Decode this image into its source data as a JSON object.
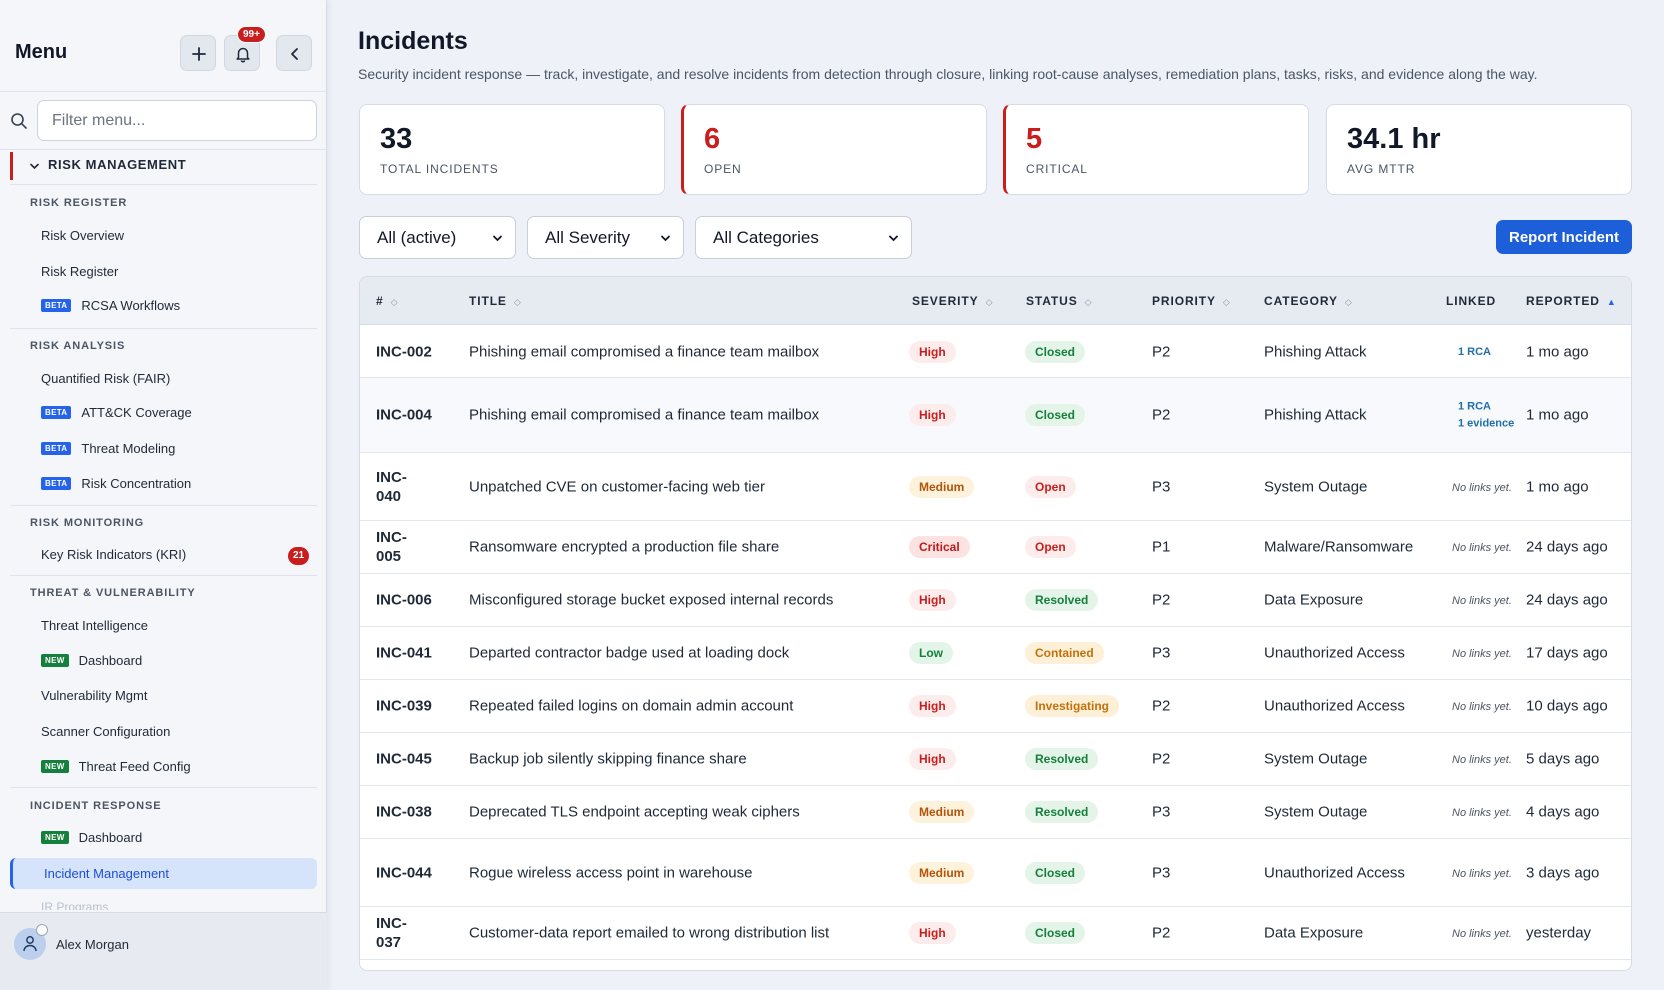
{
  "sidebar": {
    "title": "Menu",
    "notif_count": "99+",
    "search_placeholder": "Filter menu...",
    "main_section": "RISK MANAGEMENT",
    "groups": {
      "risk_register": "RISK REGISTER",
      "risk_analysis": "RISK ANALYSIS",
      "risk_monitoring": "RISK MONITORING",
      "threat_vuln": "THREAT & VULNERABILITY",
      "incident_response": "INCIDENT RESPONSE"
    },
    "items": {
      "risk_overview": "Risk Overview",
      "risk_register": "Risk Register",
      "rcsa": "RCSA Workflows",
      "fair": "Quantified Risk (FAIR)",
      "attack": "ATT&CK Coverage",
      "threat_modeling": "Threat Modeling",
      "risk_concentration": "Risk Concentration",
      "kri": "Key Risk Indicators (KRI)",
      "kri_count": "21",
      "threat_intel": "Threat Intelligence",
      "tv_dashboard": "Dashboard",
      "vuln_mgmt": "Vulnerability Mgmt",
      "scanner_config": "Scanner Configuration",
      "threat_feed": "Threat Feed Config",
      "ir_dashboard": "Dashboard",
      "incident_mgmt": "Incident Management",
      "ir_programs": "IR Programs"
    },
    "tags": {
      "beta": "BETA",
      "new": "NEW"
    },
    "user": "Alex Morgan"
  },
  "page": {
    "title": "Incidents",
    "subtitle": "Security incident response — track, investigate, and resolve incidents from detection through closure, linking root-cause analyses, remediation plans, tasks, risks, and evidence along the way."
  },
  "stats": [
    {
      "value": "33",
      "label": "TOTAL INCIDENTS"
    },
    {
      "value": "6",
      "label": "OPEN"
    },
    {
      "value": "5",
      "label": "CRITICAL"
    },
    {
      "value": "34.1 hr",
      "label": "AVG MTTR"
    }
  ],
  "filters": {
    "status": "All (active)",
    "severity": "All Severity",
    "category": "All Categories"
  },
  "report_button": "Report Incident",
  "table": {
    "headers": {
      "id": "#",
      "title": "TITLE",
      "severity": "SEVERITY",
      "status": "STATUS",
      "priority": "PRIORITY",
      "category": "CATEGORY",
      "linked": "LINKED",
      "reported": "REPORTED"
    },
    "no_links": "No links yet.",
    "rows": [
      {
        "id": "INC-002",
        "title": "Phishing email compromised a finance team mailbox",
        "severity": "High",
        "status": "Closed",
        "priority": "P2",
        "category": "Phishing Attack",
        "linked": [
          "1 RCA"
        ],
        "reported": "1 mo ago"
      },
      {
        "id": "INC-004",
        "title": "Phishing email compromised a finance team mailbox",
        "severity": "High",
        "status": "Closed",
        "priority": "P2",
        "category": "Phishing Attack",
        "linked": [
          "1 RCA",
          "1 evidence"
        ],
        "reported": "1 mo ago"
      },
      {
        "id": "INC-040",
        "title": "Unpatched CVE on customer-facing web tier",
        "severity": "Medium",
        "status": "Open",
        "priority": "P3",
        "category": "System Outage",
        "linked": [],
        "reported": "1 mo ago"
      },
      {
        "id": "INC-005",
        "title": "Ransomware encrypted a production file share",
        "severity": "Critical",
        "status": "Open",
        "priority": "P1",
        "category": "Malware/Ransomware",
        "linked": [],
        "reported": "24 days ago"
      },
      {
        "id": "INC-006",
        "title": "Misconfigured storage bucket exposed internal records",
        "severity": "High",
        "status": "Resolved",
        "priority": "P2",
        "category": "Data Exposure",
        "linked": [],
        "reported": "24 days ago"
      },
      {
        "id": "INC-041",
        "title": "Departed contractor badge used at loading dock",
        "severity": "Low",
        "status": "Contained",
        "priority": "P3",
        "category": "Unauthorized Access",
        "linked": [],
        "reported": "17 days ago"
      },
      {
        "id": "INC-039",
        "title": "Repeated failed logins on domain admin account",
        "severity": "High",
        "status": "Investigating",
        "priority": "P2",
        "category": "Unauthorized Access",
        "linked": [],
        "reported": "10 days ago"
      },
      {
        "id": "INC-045",
        "title": "Backup job silently skipping finance share",
        "severity": "High",
        "status": "Resolved",
        "priority": "P2",
        "category": "System Outage",
        "linked": [],
        "reported": "5 days ago"
      },
      {
        "id": "INC-038",
        "title": "Deprecated TLS endpoint accepting weak ciphers",
        "severity": "Medium",
        "status": "Resolved",
        "priority": "P3",
        "category": "System Outage",
        "linked": [],
        "reported": "4 days ago"
      },
      {
        "id": "INC-044",
        "title": "Rogue wireless access point in warehouse",
        "severity": "Medium",
        "status": "Closed",
        "priority": "P3",
        "category": "Unauthorized Access",
        "linked": [],
        "reported": "3 days ago"
      },
      {
        "id": "INC-037",
        "title": "Customer-data report emailed to wrong distribution list",
        "severity": "High",
        "status": "Closed",
        "priority": "P2",
        "category": "Data Exposure",
        "linked": [],
        "reported": "yesterday"
      }
    ]
  },
  "colors": {
    "accent": "#1d5fd8",
    "danger": "#c81e1e",
    "success": "#15803d",
    "warning": "#c2710c"
  }
}
